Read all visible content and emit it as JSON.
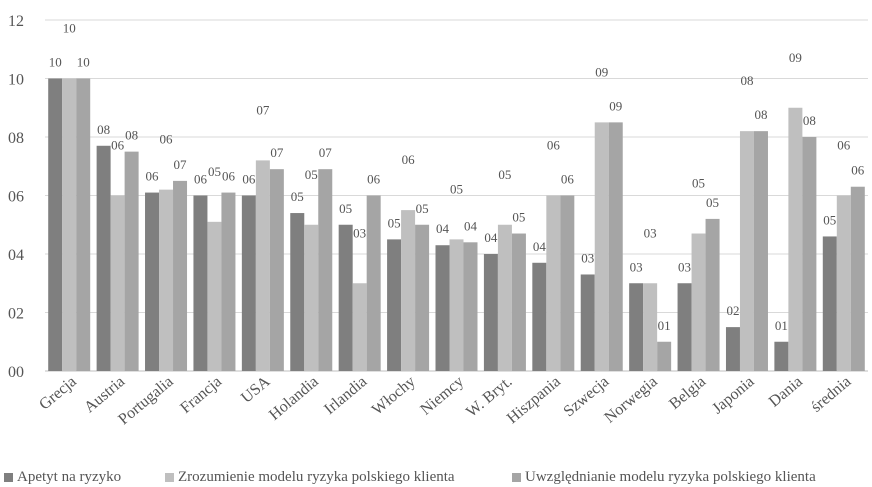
{
  "chart_data": {
    "type": "bar",
    "title": "",
    "xlabel": "",
    "ylabel": "",
    "ylim": [
      0,
      12
    ],
    "yticks": [
      "00",
      "02",
      "04",
      "06",
      "08",
      "10",
      "12"
    ],
    "grid": true,
    "legend_position": "bottom",
    "categories": [
      "Grecja",
      "Austria",
      "Portugalia",
      "Francja",
      "USA",
      "Holandia",
      "Irlandia",
      "Włochy",
      "Niemcy",
      "W. Bryt.",
      "Hiszpania",
      "Szwecja",
      "Norwegia",
      "Belgia",
      "Japonia",
      "Dania",
      "średnia"
    ],
    "series": [
      {
        "name": "Apetyt na ryzyko",
        "color": "#7f7f7f",
        "values": [
          10.0,
          7.7,
          6.1,
          6.0,
          6.0,
          5.4,
          5.0,
          4.5,
          4.3,
          4.0,
          3.7,
          3.3,
          3.0,
          3.0,
          1.5,
          1.0,
          4.6
        ],
        "labels": [
          "10",
          "08",
          "06",
          "06",
          "06",
          "05",
          "05",
          "05",
          "04",
          "04",
          "04",
          "03",
          "03",
          "03",
          "02",
          "01",
          "05"
        ]
      },
      {
        "name": "Zrozumienie modelu ryzyka polskiego klienta",
        "color": "#bfbfbf",
        "values": [
          10.0,
          6.0,
          6.2,
          5.1,
          7.2,
          5.0,
          3.0,
          5.5,
          4.5,
          5.0,
          6.0,
          8.5,
          3.0,
          4.7,
          8.2,
          9.0,
          6.0
        ],
        "labels": [
          "10",
          "06",
          "06",
          "05",
          "07",
          "05",
          "03",
          "06",
          "05",
          "05",
          "06",
          "09",
          "03",
          "05",
          "08",
          "09",
          "06"
        ]
      },
      {
        "name": "Uwzględnianie modelu ryzyka polskiego klienta",
        "color": "#a5a5a5",
        "values": [
          10.0,
          7.5,
          6.5,
          6.1,
          6.9,
          6.9,
          6.0,
          5.0,
          4.4,
          4.7,
          6.0,
          8.5,
          1.0,
          5.2,
          8.2,
          8.0,
          6.3
        ],
        "labels": [
          "10",
          "08",
          "07",
          "06",
          "07",
          "07",
          "06",
          "05",
          "04",
          "05",
          "06",
          "09",
          "01",
          "05",
          "08",
          "08",
          "06"
        ]
      }
    ]
  }
}
